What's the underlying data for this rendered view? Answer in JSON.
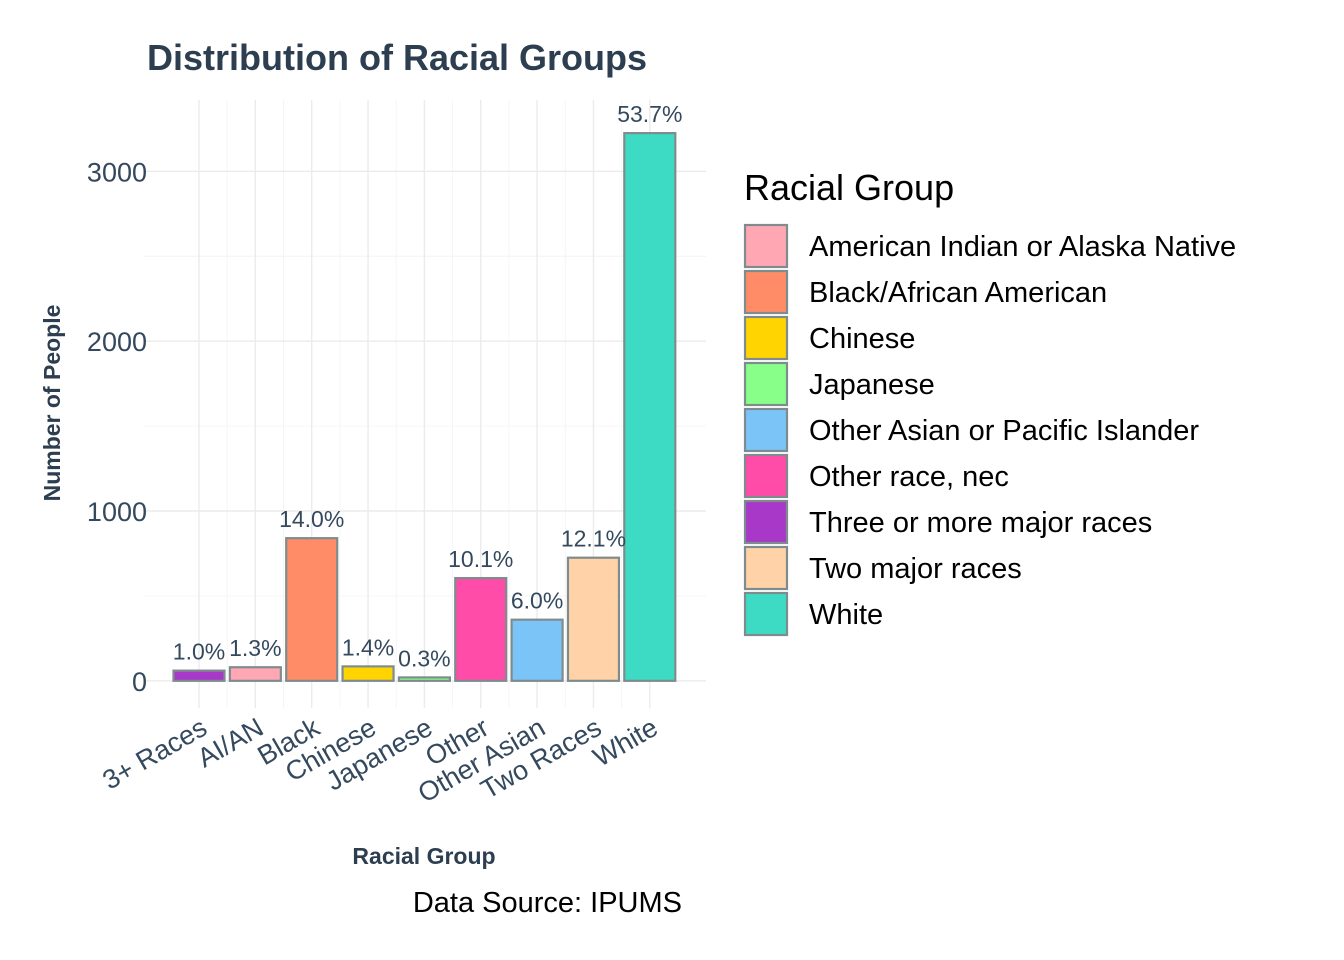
{
  "chart_data": {
    "type": "bar",
    "title": "Distribution of Racial Groups",
    "xlabel": "Racial Group",
    "ylabel": "Number of People",
    "caption": "Data Source: IPUMS",
    "ylim": [
      -160,
      3420
    ],
    "yticks": [
      0,
      1000,
      2000,
      3000
    ],
    "grid": true,
    "categories": [
      "3+ Races",
      "AI/AN",
      "Black",
      "Chinese",
      "Japanese",
      "Other",
      "Other Asian",
      "Two Races",
      "White"
    ],
    "values": [
      60,
      80,
      840,
      85,
      20,
      605,
      360,
      725,
      3225
    ],
    "labels": [
      "1.0%",
      "1.3%",
      "14.0%",
      "1.4%",
      "0.3%",
      "10.1%",
      "6.0%",
      "12.1%",
      "53.7%"
    ],
    "colors": [
      "#a838c8",
      "#ffa8b4",
      "#ff8c66",
      "#ffd400",
      "#88ff88",
      "#ff4ca8",
      "#7ac4f8",
      "#ffd2a8",
      "#3ddbc4"
    ],
    "bar_outline": "#7f8c8d",
    "legend": {
      "title": "Racial Group",
      "position": "right",
      "items": [
        {
          "label": "American Indian or Alaska Native",
          "color": "#ffa8b4"
        },
        {
          "label": "Black/African American",
          "color": "#ff8c66"
        },
        {
          "label": "Chinese",
          "color": "#ffd400"
        },
        {
          "label": "Japanese",
          "color": "#88ff88"
        },
        {
          "label": "Other Asian or Pacific Islander",
          "color": "#7ac4f8"
        },
        {
          "label": "Other race, nec",
          "color": "#ff4ca8"
        },
        {
          "label": "Three or more major races",
          "color": "#a838c8"
        },
        {
          "label": "Two major races",
          "color": "#ffd2a8"
        },
        {
          "label": "White",
          "color": "#3ddbc4"
        }
      ]
    }
  }
}
